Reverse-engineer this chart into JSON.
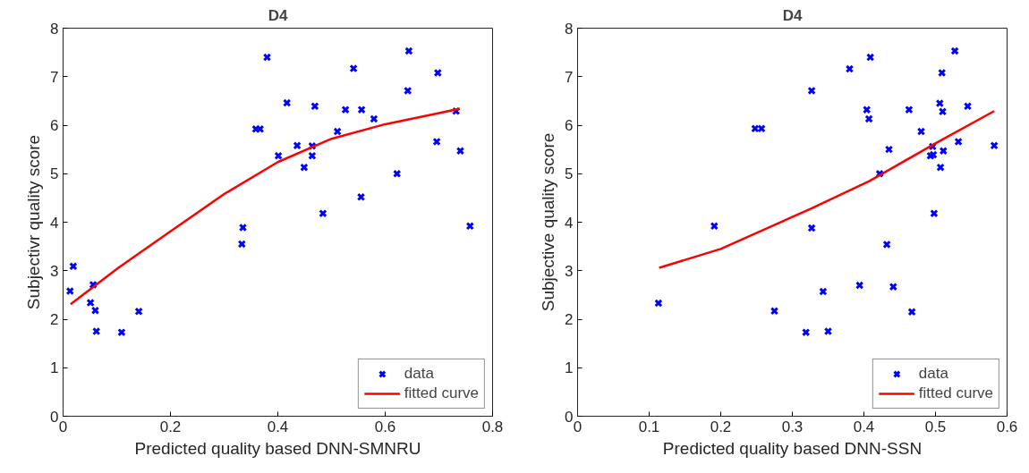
{
  "chart_data": [
    {
      "type": "scatter",
      "title": "D4",
      "xlabel": "Predicted quality based DNN-SMNRU",
      "ylabel": "Subjectivr quality score",
      "xlim": [
        0,
        0.8
      ],
      "xticks": [
        0,
        0.2,
        0.4,
        0.6,
        0.8
      ],
      "ylim": [
        0,
        8
      ],
      "yticks": [
        0,
        1,
        2,
        3,
        4,
        5,
        6,
        7,
        8
      ],
      "legend": "bottom right",
      "series": [
        {
          "name": "data",
          "type": "scatter",
          "marker": "cross",
          "color": "#0000ff",
          "x": [
            0.013,
            0.019,
            0.056,
            0.051,
            0.06,
            0.062,
            0.109,
            0.141,
            0.335,
            0.333,
            0.359,
            0.367,
            0.38,
            0.401,
            0.417,
            0.436,
            0.449,
            0.464,
            0.464,
            0.469,
            0.484,
            0.511,
            0.526,
            0.541,
            0.556,
            0.555,
            0.579,
            0.622,
            0.642,
            0.644,
            0.696,
            0.698,
            0.732,
            0.74,
            0.758
          ],
          "values": [
            2.58,
            3.09,
            2.71,
            2.34,
            2.18,
            1.75,
            1.73,
            2.16,
            3.89,
            3.55,
            5.92,
            5.92,
            7.4,
            5.37,
            6.46,
            5.58,
            5.13,
            5.57,
            5.37,
            6.39,
            4.18,
            5.87,
            6.32,
            7.17,
            6.32,
            4.52,
            6.13,
            5.0,
            6.71,
            7.53,
            5.66,
            7.08,
            6.29,
            5.47,
            3.92
          ]
        },
        {
          "name": "fitted curve",
          "type": "line",
          "marker": "none",
          "line_style": "solid",
          "color": "#ff0000",
          "x": [
            0.014,
            0.103,
            0.2,
            0.3,
            0.4,
            0.5,
            0.6,
            0.7,
            0.739
          ],
          "values": [
            2.31,
            3.06,
            3.81,
            4.58,
            5.24,
            5.72,
            6.02,
            6.25,
            6.34
          ]
        }
      ]
    },
    {
      "type": "scatter",
      "title": "D4",
      "xlabel": "Predicted quality based DNN-SSN",
      "ylabel": "Subjective quality score",
      "xlim": [
        0,
        0.6
      ],
      "xticks": [
        0,
        0.1,
        0.2,
        0.3,
        0.4,
        0.5,
        0.6
      ],
      "ylim": [
        0,
        8
      ],
      "yticks": [
        0,
        1,
        2,
        3,
        4,
        5,
        6,
        7,
        8
      ],
      "legend": "bottom right",
      "series": [
        {
          "name": "data",
          "type": "scatter",
          "marker": "cross",
          "color": "#0000ff",
          "x": [
            0.113,
            0.191,
            0.248,
            0.257,
            0.275,
            0.319,
            0.327,
            0.327,
            0.343,
            0.35,
            0.38,
            0.394,
            0.404,
            0.407,
            0.409,
            0.422,
            0.432,
            0.435,
            0.441,
            0.463,
            0.467,
            0.48,
            0.493,
            0.496,
            0.498,
            0.497,
            0.506,
            0.507,
            0.509,
            0.51,
            0.511,
            0.527,
            0.532,
            0.545,
            0.582
          ],
          "values": [
            2.33,
            3.92,
            5.93,
            5.93,
            2.17,
            1.73,
            6.71,
            3.88,
            2.57,
            1.75,
            7.16,
            2.7,
            6.32,
            6.13,
            7.4,
            5.0,
            3.54,
            5.5,
            2.67,
            6.32,
            2.15,
            5.87,
            5.37,
            5.56,
            4.18,
            5.39,
            6.45,
            5.13,
            7.08,
            6.28,
            5.47,
            7.53,
            5.66,
            6.39,
            5.58
          ]
        },
        {
          "name": "fitted curve",
          "type": "line",
          "marker": "none",
          "line_style": "solid",
          "color": "#ff0000",
          "x": [
            0.114,
            0.2,
            0.249,
            0.3,
            0.326,
            0.408,
            0.497,
            0.582
          ],
          "values": [
            3.06,
            3.45,
            3.77,
            4.11,
            4.28,
            4.85,
            5.6,
            6.29
          ]
        }
      ]
    }
  ]
}
